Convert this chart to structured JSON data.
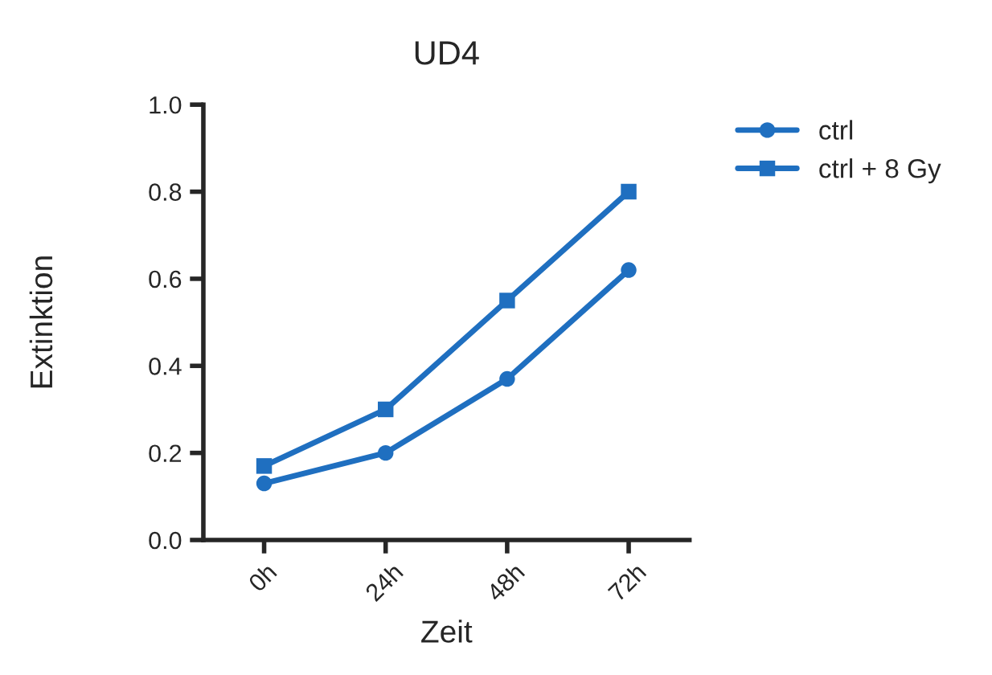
{
  "chart_data": {
    "type": "line",
    "title": "UD4",
    "xlabel": "Zeit",
    "ylabel": "Extinktion",
    "categories": [
      "0h",
      "24h",
      "48h",
      "72h"
    ],
    "series": [
      {
        "name": "ctrl",
        "color": "#1f6fc0",
        "marker": "circle",
        "values": [
          0.13,
          0.2,
          0.37,
          0.62
        ]
      },
      {
        "name": "ctrl + 8 Gy",
        "color": "#1f6fc0",
        "marker": "square",
        "values": [
          0.17,
          0.3,
          0.55,
          0.8
        ]
      }
    ],
    "ylim": [
      0,
      1
    ],
    "yticks": [
      {
        "value": 0,
        "label": "0.0"
      },
      {
        "value": 0.2,
        "label": "0.2"
      },
      {
        "value": 0.4,
        "label": "0.4"
      },
      {
        "value": 0.6,
        "label": "0.6"
      },
      {
        "value": 0.8,
        "label": "0.8"
      },
      {
        "value": 1,
        "label": "1.0"
      }
    ],
    "grid": false,
    "legend": "top right",
    "line_style": "solid"
  }
}
